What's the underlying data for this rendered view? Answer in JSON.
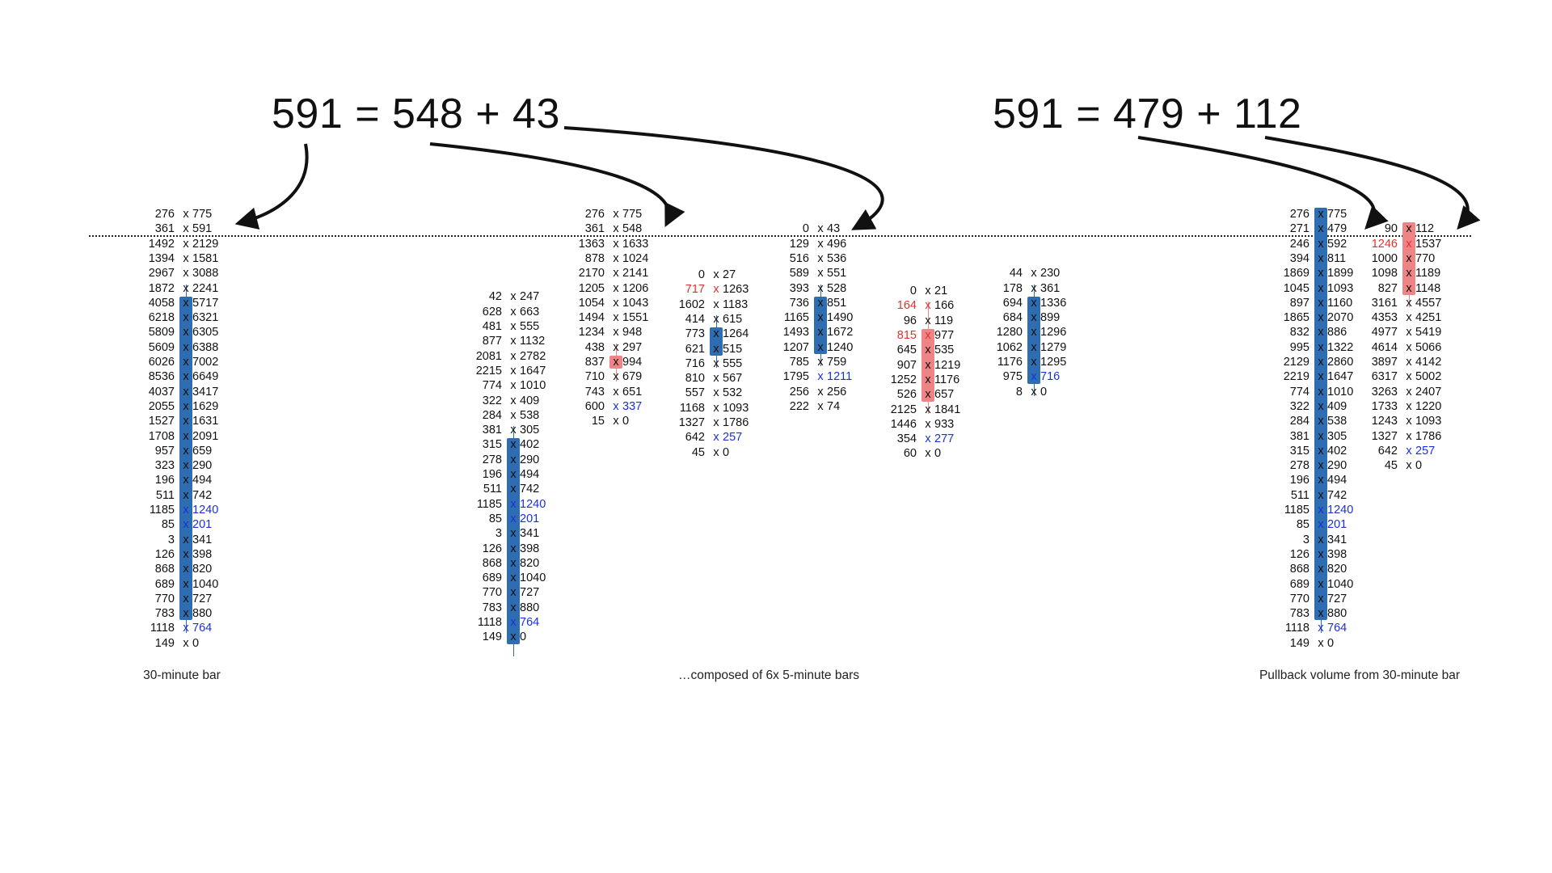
{
  "equations": [
    {
      "text": "591 = 548 + 43"
    },
    {
      "text": "591 = 479 + 112"
    }
  ],
  "captions": [
    {
      "text": "30-minute bar"
    },
    {
      "text": "…composed of 6x 5-minute bars"
    },
    {
      "text": "Pullback volume from 30-minute bar"
    }
  ],
  "columns": [
    {
      "name": "30min",
      "start_index": 0,
      "body_blue": [
        6,
        27
      ],
      "wick": [
        5,
        28
      ],
      "rows": [
        {
          "b": "276",
          "a": "775"
        },
        {
          "b": "361",
          "a": "591"
        },
        {
          "b": "1492",
          "a": "2129"
        },
        {
          "b": "1394",
          "a": "1581"
        },
        {
          "b": "2967",
          "a": "3088"
        },
        {
          "b": "1872",
          "a": "2241"
        },
        {
          "b": "4058",
          "a": "5717"
        },
        {
          "b": "6218",
          "a": "6321"
        },
        {
          "b": "5809",
          "a": "6305"
        },
        {
          "b": "5609",
          "a": "6388"
        },
        {
          "b": "6026",
          "a": "7002"
        },
        {
          "b": "8536",
          "a": "6649"
        },
        {
          "b": "4037",
          "a": "3417"
        },
        {
          "b": "2055",
          "a": "1629"
        },
        {
          "b": "1527",
          "a": "1631"
        },
        {
          "b": "1708",
          "a": "2091"
        },
        {
          "b": "957",
          "a": "659"
        },
        {
          "b": "323",
          "a": "290"
        },
        {
          "b": "196",
          "a": "494"
        },
        {
          "b": "511",
          "a": "742"
        },
        {
          "b": "1185",
          "a": "1240",
          "ac": "blue"
        },
        {
          "b": "85",
          "a": "201",
          "ac": "blue"
        },
        {
          "b": "3",
          "a": "341"
        },
        {
          "b": "126",
          "a": "398"
        },
        {
          "b": "868",
          "a": "820"
        },
        {
          "b": "689",
          "a": "1040"
        },
        {
          "b": "770",
          "a": "727"
        },
        {
          "b": "783",
          "a": "880"
        },
        {
          "b": "1118",
          "a": "764",
          "ac": "blue"
        },
        {
          "b": "149",
          "a": "0"
        }
      ]
    },
    {
      "name": "5min-1",
      "start_index": 5.6,
      "body_blue": [
        10,
        23
      ],
      "wick": [
        9,
        24
      ],
      "rows": [
        {
          "b": "42",
          "a": "247"
        },
        {
          "b": "628",
          "a": "663"
        },
        {
          "b": "481",
          "a": "555"
        },
        {
          "b": "877",
          "a": "1132"
        },
        {
          "b": "2081",
          "a": "2782"
        },
        {
          "b": "2215",
          "a": "1647"
        },
        {
          "b": "774",
          "a": "1010"
        },
        {
          "b": "322",
          "a": "409"
        },
        {
          "b": "284",
          "a": "538"
        },
        {
          "b": "381",
          "a": "305"
        },
        {
          "b": "315",
          "a": "402"
        },
        {
          "b": "278",
          "a": "290"
        },
        {
          "b": "196",
          "a": "494"
        },
        {
          "b": "511",
          "a": "742"
        },
        {
          "b": "1185",
          "a": "1240",
          "ac": "blue"
        },
        {
          "b": "85",
          "a": "201",
          "ac": "blue"
        },
        {
          "b": "3",
          "a": "341"
        },
        {
          "b": "126",
          "a": "398"
        },
        {
          "b": "868",
          "a": "820"
        },
        {
          "b": "689",
          "a": "1040"
        },
        {
          "b": "770",
          "a": "727"
        },
        {
          "b": "783",
          "a": "880"
        },
        {
          "b": "1118",
          "a": "764",
          "ac": "blue"
        },
        {
          "b": "149",
          "a": "0"
        }
      ]
    },
    {
      "name": "5min-2",
      "start_index": 0,
      "body_red": [
        10,
        10
      ],
      "wick_red": [
        9,
        11
      ],
      "rows": [
        {
          "b": "276",
          "a": "775"
        },
        {
          "b": "361",
          "a": "548"
        },
        {
          "b": "1363",
          "a": "1633"
        },
        {
          "b": "878",
          "a": "1024"
        },
        {
          "b": "2170",
          "a": "2141"
        },
        {
          "b": "1205",
          "a": "1206"
        },
        {
          "b": "1054",
          "a": "1043"
        },
        {
          "b": "1494",
          "a": "1551"
        },
        {
          "b": "1234",
          "a": "948"
        },
        {
          "b": "438",
          "a": "297"
        },
        {
          "b": "837",
          "a": "994"
        },
        {
          "b": "710",
          "a": "679"
        },
        {
          "b": "743",
          "a": "651"
        },
        {
          "b": "600",
          "a": "337",
          "ac": "blue"
        },
        {
          "b": "15",
          "a": "0"
        }
      ]
    },
    {
      "name": "5min-3",
      "start_index": 4.1,
      "body_blue": [
        4,
        5
      ],
      "wick": [
        3,
        6
      ],
      "rows": [
        {
          "b": "0",
          "a": "27"
        },
        {
          "b": "717",
          "a": "1263",
          "bc": "red"
        },
        {
          "b": "1602",
          "a": "1183"
        },
        {
          "b": "414",
          "a": "615"
        },
        {
          "b": "773",
          "a": "1264"
        },
        {
          "b": "621",
          "a": "515"
        },
        {
          "b": "716",
          "a": "555"
        },
        {
          "b": "810",
          "a": "567"
        },
        {
          "b": "557",
          "a": "532"
        },
        {
          "b": "1168",
          "a": "1093"
        },
        {
          "b": "1327",
          "a": "1786"
        },
        {
          "b": "642",
          "a": "257",
          "ac": "blue"
        },
        {
          "b": "45",
          "a": "0"
        }
      ]
    },
    {
      "name": "5min-4",
      "start_index": 1,
      "body_blue": [
        5,
        8
      ],
      "wick": [
        4,
        9
      ],
      "rows": [
        {
          "b": "0",
          "a": "43"
        },
        {
          "b": "129",
          "a": "496"
        },
        {
          "b": "516",
          "a": "536"
        },
        {
          "b": "589",
          "a": "551"
        },
        {
          "b": "393",
          "a": "528"
        },
        {
          "b": "736",
          "a": "851"
        },
        {
          "b": "1165",
          "a": "1490"
        },
        {
          "b": "1493",
          "a": "1672"
        },
        {
          "b": "1207",
          "a": "1240"
        },
        {
          "b": "785",
          "a": "759"
        },
        {
          "b": "1795",
          "a": "1211",
          "ac": "blue"
        },
        {
          "b": "256",
          "a": "256"
        },
        {
          "b": "222",
          "a": "74"
        }
      ]
    },
    {
      "name": "5min-5",
      "start_index": 5.2,
      "body_red": [
        3,
        7
      ],
      "wick_red": [
        1,
        8
      ],
      "rows": [
        {
          "b": "0",
          "a": "21"
        },
        {
          "b": "164",
          "a": "166",
          "bc": "red"
        },
        {
          "b": "96",
          "a": "119"
        },
        {
          "b": "815",
          "a": "977",
          "bc": "red"
        },
        {
          "b": "645",
          "a": "535"
        },
        {
          "b": "907",
          "a": "1219"
        },
        {
          "b": "1252",
          "a": "1176"
        },
        {
          "b": "526",
          "a": "657"
        },
        {
          "b": "2125",
          "a": "1841"
        },
        {
          "b": "1446",
          "a": "933"
        },
        {
          "b": "354",
          "a": "277",
          "ac": "blue"
        },
        {
          "b": "60",
          "a": "0"
        }
      ]
    },
    {
      "name": "5min-6",
      "start_index": 4,
      "body_blue": [
        2,
        7
      ],
      "wick": [
        1,
        8
      ],
      "rows": [
        {
          "b": "44",
          "a": "230"
        },
        {
          "b": "178",
          "a": "361"
        },
        {
          "b": "694",
          "a": "1336"
        },
        {
          "b": "684",
          "a": "899"
        },
        {
          "b": "1280",
          "a": "1296"
        },
        {
          "b": "1062",
          "a": "1279"
        },
        {
          "b": "1176",
          "a": "1295"
        },
        {
          "b": "975",
          "a": "716",
          "ac": "blue"
        },
        {
          "b": "8",
          "a": "0"
        }
      ]
    },
    {
      "name": "pullback-blue",
      "start_index": 0,
      "body_blue": [
        0,
        27
      ],
      "wick": [
        0,
        28
      ],
      "rows": [
        {
          "b": "276",
          "a": "775"
        },
        {
          "b": "271",
          "a": "479"
        },
        {
          "b": "246",
          "a": "592"
        },
        {
          "b": "394",
          "a": "811"
        },
        {
          "b": "1869",
          "a": "1899"
        },
        {
          "b": "1045",
          "a": "1093"
        },
        {
          "b": "897",
          "a": "1160"
        },
        {
          "b": "1865",
          "a": "2070"
        },
        {
          "b": "832",
          "a": "886"
        },
        {
          "b": "995",
          "a": "1322"
        },
        {
          "b": "2129",
          "a": "2860"
        },
        {
          "b": "2219",
          "a": "1647"
        },
        {
          "b": "774",
          "a": "1010"
        },
        {
          "b": "322",
          "a": "409"
        },
        {
          "b": "284",
          "a": "538"
        },
        {
          "b": "381",
          "a": "305"
        },
        {
          "b": "315",
          "a": "402"
        },
        {
          "b": "278",
          "a": "290"
        },
        {
          "b": "196",
          "a": "494"
        },
        {
          "b": "511",
          "a": "742"
        },
        {
          "b": "1185",
          "a": "1240",
          "ac": "blue"
        },
        {
          "b": "85",
          "a": "201",
          "ac": "blue"
        },
        {
          "b": "3",
          "a": "341"
        },
        {
          "b": "126",
          "a": "398"
        },
        {
          "b": "868",
          "a": "820"
        },
        {
          "b": "689",
          "a": "1040"
        },
        {
          "b": "770",
          "a": "727"
        },
        {
          "b": "783",
          "a": "880"
        },
        {
          "b": "1118",
          "a": "764",
          "ac": "blue"
        },
        {
          "b": "149",
          "a": "0"
        }
      ]
    },
    {
      "name": "pullback-red",
      "start_index": 1,
      "body_red": [
        0,
        4
      ],
      "wick_red": [
        0,
        5
      ],
      "rows": [
        {
          "b": "90",
          "a": "112"
        },
        {
          "b": "1246",
          "a": "1537",
          "bc": "red"
        },
        {
          "b": "1000",
          "a": "770"
        },
        {
          "b": "1098",
          "a": "1189"
        },
        {
          "b": "827",
          "a": "1148"
        },
        {
          "b": "3161",
          "a": "4557"
        },
        {
          "b": "4353",
          "a": "4251"
        },
        {
          "b": "4977",
          "a": "5419"
        },
        {
          "b": "4614",
          "a": "5066"
        },
        {
          "b": "3897",
          "a": "4142"
        },
        {
          "b": "6317",
          "a": "5002"
        },
        {
          "b": "3263",
          "a": "2407"
        },
        {
          "b": "1733",
          "a": "1220"
        },
        {
          "b": "1243",
          "a": "1093"
        },
        {
          "b": "1327",
          "a": "1786"
        },
        {
          "b": "642",
          "a": "257",
          "ac": "blue"
        },
        {
          "b": "45",
          "a": "0"
        }
      ]
    }
  ]
}
